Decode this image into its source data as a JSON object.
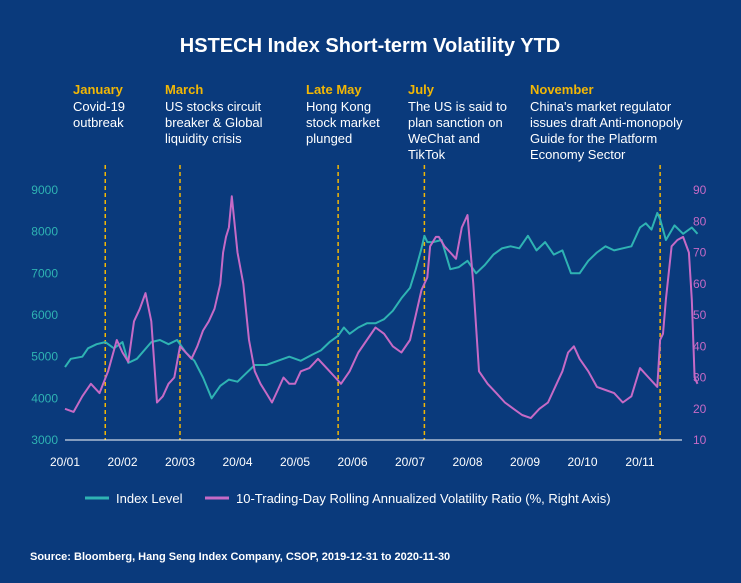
{
  "chart_data": {
    "type": "line",
    "title": "HSTECH Index Short-term Volatility YTD",
    "x_tick_labels": [
      "20/01",
      "20/02",
      "20/03",
      "20/04",
      "20/05",
      "20/06",
      "20/07",
      "20/08",
      "20/09",
      "20/10",
      "20/11"
    ],
    "left_axis": {
      "ylim": [
        3000,
        9000
      ],
      "ticks": [
        "3000",
        "4000",
        "5000",
        "6000",
        "7000",
        "8000",
        "9000"
      ]
    },
    "right_axis": {
      "ylim": [
        10,
        90
      ],
      "ticks": [
        "10",
        "20",
        "30",
        "40",
        "50",
        "60",
        "70",
        "80",
        "90"
      ]
    },
    "annotations": [
      {
        "month": "January",
        "text": [
          "Covid-19",
          "outbreak"
        ],
        "x": 0.7
      },
      {
        "month": "March",
        "text": [
          "US stocks circuit",
          "breaker & Global",
          "liquidity crisis"
        ],
        "x": 2.0
      },
      {
        "month": "Late May",
        "text": [
          "Hong Kong",
          "stock market",
          "plunged"
        ],
        "x": 4.75
      },
      {
        "month": "July",
        "text": [
          "The US is said to",
          "plan sanction on",
          "WeChat and",
          "TikTok"
        ],
        "x": 6.25
      },
      {
        "month": "November",
        "text": [
          "China's market regulator",
          "issues draft Anti-monopoly",
          "Guide for the Platform",
          "Economy Sector"
        ],
        "x": 10.35
      }
    ],
    "series": [
      {
        "name": "Index Level",
        "axis": "left",
        "color": "#2fb3b3",
        "x": [
          0,
          0.1,
          0.3,
          0.4,
          0.55,
          0.7,
          0.85,
          1.0,
          1.1,
          1.25,
          1.5,
          1.65,
          1.8,
          1.95,
          2.1,
          2.25,
          2.4,
          2.55,
          2.7,
          2.85,
          3.0,
          3.15,
          3.3,
          3.5,
          3.7,
          3.9,
          4.1,
          4.3,
          4.45,
          4.6,
          4.75,
          4.85,
          4.95,
          5.1,
          5.25,
          5.4,
          5.55,
          5.7,
          5.85,
          6.0,
          6.1,
          6.2,
          6.25,
          6.3,
          6.4,
          6.55,
          6.7,
          6.85,
          7.0,
          7.15,
          7.3,
          7.45,
          7.6,
          7.75,
          7.9,
          8.05,
          8.2,
          8.35,
          8.5,
          8.65,
          8.8,
          8.95,
          9.1,
          9.25,
          9.4,
          9.55,
          9.7,
          9.85,
          10.0,
          10.1,
          10.2,
          10.3,
          10.35,
          10.45,
          10.6,
          10.75,
          10.9,
          11.0
        ],
        "values": [
          4750,
          4950,
          5000,
          5200,
          5300,
          5350,
          5200,
          5350,
          4850,
          4950,
          5350,
          5400,
          5300,
          5400,
          5100,
          4900,
          4500,
          4000,
          4300,
          4450,
          4400,
          4600,
          4800,
          4800,
          4900,
          5000,
          4900,
          5050,
          5150,
          5350,
          5500,
          5700,
          5550,
          5700,
          5800,
          5800,
          5900,
          6100,
          6400,
          6650,
          7100,
          7600,
          7900,
          7750,
          7750,
          7800,
          7100,
          7150,
          7300,
          7000,
          7200,
          7450,
          7600,
          7650,
          7600,
          7900,
          7550,
          7750,
          7450,
          7550,
          7000,
          7000,
          7300,
          7500,
          7650,
          7550,
          7600,
          7650,
          8100,
          8200,
          8050,
          8450,
          8300,
          7800,
          8150,
          7950,
          8100,
          7950
        ]
      },
      {
        "name": "10-Trading-Day Rolling Annualized Volatility Ratio (%, Right Axis)",
        "axis": "right",
        "color": "#c66ac6",
        "x": [
          0,
          0.15,
          0.3,
          0.45,
          0.6,
          0.75,
          0.9,
          1.0,
          1.1,
          1.2,
          1.3,
          1.4,
          1.5,
          1.6,
          1.7,
          1.8,
          1.9,
          2.0,
          2.1,
          2.2,
          2.3,
          2.4,
          2.5,
          2.6,
          2.7,
          2.75,
          2.8,
          2.85,
          2.9,
          3.0,
          3.1,
          3.2,
          3.3,
          3.4,
          3.5,
          3.6,
          3.7,
          3.8,
          3.9,
          4.0,
          4.1,
          4.25,
          4.4,
          4.55,
          4.7,
          4.8,
          4.95,
          5.1,
          5.25,
          5.4,
          5.55,
          5.7,
          5.85,
          6.0,
          6.1,
          6.2,
          6.3,
          6.35,
          6.45,
          6.5,
          6.6,
          6.7,
          6.8,
          6.9,
          7.0,
          7.1,
          7.2,
          7.35,
          7.5,
          7.65,
          7.8,
          7.95,
          8.1,
          8.25,
          8.4,
          8.55,
          8.65,
          8.75,
          8.85,
          8.95,
          9.1,
          9.25,
          9.4,
          9.55,
          9.7,
          9.85,
          10.0,
          10.15,
          10.3,
          10.35,
          10.4,
          10.45,
          10.55,
          10.65,
          10.75,
          10.85,
          10.9,
          10.95,
          11.0
        ],
        "values": [
          20,
          19,
          24,
          28,
          25,
          32,
          42,
          38,
          35,
          48,
          52,
          57,
          48,
          22,
          24,
          28,
          30,
          40,
          38,
          36,
          40,
          45,
          48,
          52,
          60,
          70,
          75,
          78,
          88,
          70,
          60,
          42,
          32,
          28,
          25,
          22,
          26,
          30,
          28,
          28,
          32,
          33,
          36,
          33,
          30,
          28,
          32,
          38,
          42,
          46,
          44,
          40,
          38,
          42,
          50,
          58,
          62,
          72,
          75,
          75,
          72,
          70,
          68,
          78,
          82,
          60,
          32,
          28,
          25,
          22,
          20,
          18,
          17,
          20,
          22,
          28,
          32,
          38,
          40,
          36,
          32,
          27,
          26,
          25,
          22,
          24,
          33,
          30,
          27,
          42,
          44,
          55,
          72,
          74,
          75,
          70,
          55,
          30,
          28
        ]
      }
    ]
  },
  "legend": {
    "index_label": "Index Level",
    "vol_label": "10-Trading-Day Rolling Annualized Volatility Ratio (%, Right Axis)"
  },
  "source": "Source: Bloomberg, Hang Seng Index Company, CSOP, 2019-12-31 to 2020-11-30",
  "colors": {
    "background": "#0a3a7c",
    "index_line": "#2fb3b3",
    "vol_line": "#c66ac6",
    "annotation": "#f2b705"
  }
}
